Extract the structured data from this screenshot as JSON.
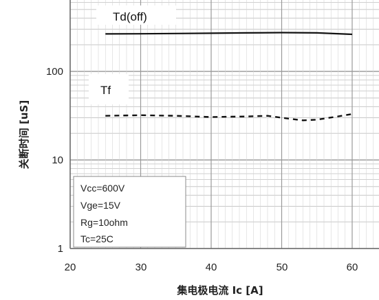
{
  "chart_data": {
    "type": "line",
    "xlabel": "集电极电流 Ic [A]",
    "ylabel": "关断时间 [uS]",
    "x_ticks": [
      "20",
      "30",
      "40",
      "50",
      "60"
    ],
    "y_ticks": [
      "1",
      "10",
      "100"
    ],
    "xlim": [
      20,
      65
    ],
    "ylim": [
      1,
      1000
    ],
    "y_scale": "log",
    "grid": true,
    "series": [
      {
        "name": "Td(off)",
        "style": "solid",
        "x": [
          25,
          30,
          35,
          40,
          45,
          50,
          55,
          60
        ],
        "y": [
          265,
          266,
          268,
          270,
          272,
          274,
          272,
          262
        ]
      },
      {
        "name": "Tf",
        "style": "dashed",
        "x": [
          25,
          30,
          35,
          40,
          45,
          48,
          50,
          53,
          55,
          58,
          60
        ],
        "y": [
          31.5,
          32,
          31.5,
          30.5,
          31,
          31.5,
          30,
          28,
          28.5,
          31,
          33
        ]
      }
    ],
    "conditions": [
      "Vcc=600V",
      "Vge=15V",
      "Rg=10ohm",
      "Tc=25C"
    ],
    "colors": {
      "series": "#111111",
      "grid": "#bfbfbf",
      "frame": "#666666"
    }
  }
}
